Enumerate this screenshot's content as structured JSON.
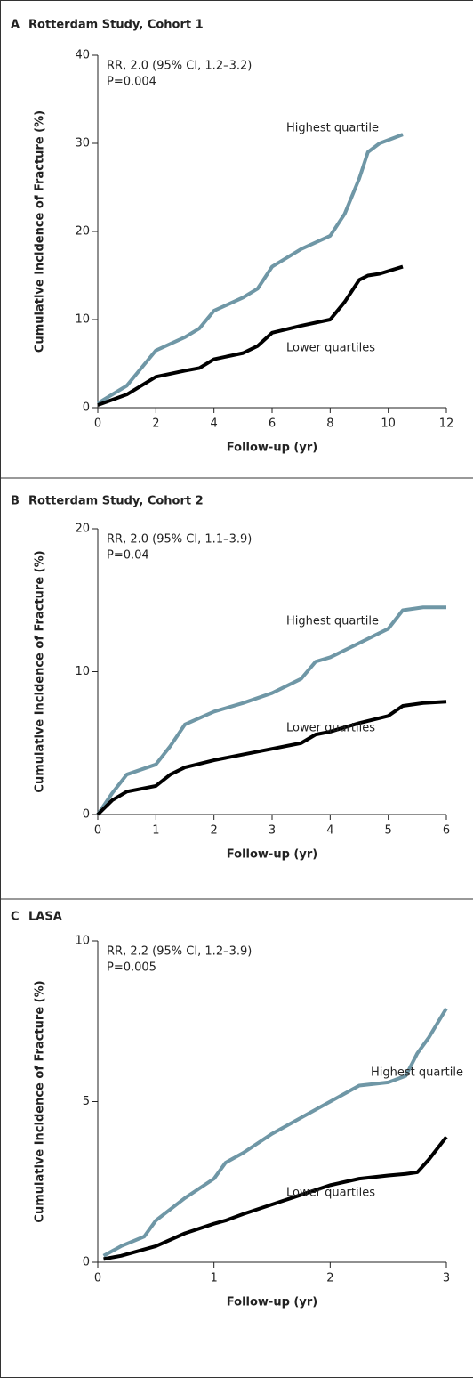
{
  "chart_data": [
    {
      "type": "line",
      "panel": "A",
      "title": "Rotterdam Study, Cohort 1",
      "annotations": [
        "RR, 2.0 (95% CI, 1.2–3.2)",
        "P=0.004"
      ],
      "xlabel": "Follow-up (yr)",
      "ylabel": "Cumulative Incidence of Fracture (%)",
      "xlim": [
        0,
        12
      ],
      "xticks": [
        0,
        2,
        4,
        6,
        8,
        10,
        12
      ],
      "ylim": [
        0,
        40
      ],
      "yticks": [
        0,
        10,
        20,
        30,
        40
      ],
      "x": [
        0,
        1,
        2,
        3,
        3.5,
        4,
        5,
        5.5,
        6,
        7,
        8,
        8.5,
        9,
        9.3,
        9.7,
        10.5
      ],
      "series": [
        {
          "name": "Highest quartile",
          "color": "#6f97a6",
          "values": [
            0.5,
            2.5,
            6.5,
            8,
            9,
            11,
            12.5,
            13.5,
            16,
            18,
            19.5,
            22,
            26,
            29,
            30,
            31
          ]
        },
        {
          "name": "Lower quartiles",
          "color": "#000000",
          "values": [
            0.3,
            1.5,
            3.5,
            4.2,
            4.5,
            5.5,
            6.2,
            7,
            8.5,
            9.3,
            10,
            12,
            14.5,
            15,
            15.2,
            16
          ]
        }
      ]
    },
    {
      "type": "line",
      "panel": "B",
      "title": "Rotterdam Study, Cohort 2",
      "annotations": [
        "RR, 2.0 (95% CI, 1.1–3.9)",
        "P=0.04"
      ],
      "xlabel": "Follow-up (yr)",
      "ylabel": "Cumulative Incidence of Fracture (%)",
      "xlim": [
        0,
        6
      ],
      "xticks": [
        0,
        1,
        2,
        3,
        4,
        5,
        6
      ],
      "ylim": [
        0,
        20
      ],
      "yticks": [
        0,
        10,
        20
      ],
      "x": [
        0,
        0.25,
        0.5,
        1,
        1.25,
        1.5,
        2,
        2.5,
        3,
        3.5,
        3.75,
        4,
        4.5,
        5,
        5.25,
        5.6,
        6
      ],
      "series": [
        {
          "name": "Highest quartile",
          "color": "#6f97a6",
          "values": [
            0,
            1.5,
            2.8,
            3.5,
            4.8,
            6.3,
            7.2,
            7.8,
            8.5,
            9.5,
            10.7,
            11,
            12,
            13,
            14.3,
            14.5,
            14.5
          ]
        },
        {
          "name": "Lower quartiles",
          "color": "#000000",
          "values": [
            0,
            1,
            1.6,
            2,
            2.8,
            3.3,
            3.8,
            4.2,
            4.6,
            5,
            5.6,
            5.8,
            6.4,
            6.9,
            7.6,
            7.8,
            7.9
          ]
        }
      ]
    },
    {
      "type": "line",
      "panel": "C",
      "title": "LASA",
      "annotations": [
        "RR, 2.2 (95% CI, 1.2–3.9)",
        "P=0.005"
      ],
      "xlabel": "Follow-up (yr)",
      "ylabel": "Cumulative Incidence of Fracture (%)",
      "xlim": [
        0,
        3
      ],
      "xticks": [
        0,
        1,
        2,
        3
      ],
      "ylim": [
        0,
        10
      ],
      "yticks": [
        0,
        5,
        10
      ],
      "x": [
        0.05,
        0.2,
        0.4,
        0.5,
        0.75,
        1,
        1.1,
        1.25,
        1.5,
        1.75,
        2,
        2.25,
        2.5,
        2.65,
        2.75,
        2.85,
        3
      ],
      "series": [
        {
          "name": "Highest quartile",
          "color": "#6f97a6",
          "values": [
            0.2,
            0.5,
            0.8,
            1.3,
            2,
            2.6,
            3.1,
            3.4,
            4,
            4.5,
            5,
            5.5,
            5.6,
            5.8,
            6.5,
            7,
            7.9
          ]
        },
        {
          "name": "Lower quartiles",
          "color": "#000000",
          "values": [
            0.1,
            0.2,
            0.4,
            0.5,
            0.9,
            1.2,
            1.3,
            1.5,
            1.8,
            2.1,
            2.4,
            2.6,
            2.7,
            2.75,
            2.8,
            3.2,
            3.9
          ]
        }
      ]
    }
  ]
}
